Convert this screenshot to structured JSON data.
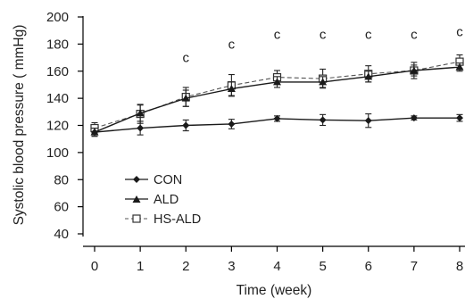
{
  "chart_data": {
    "type": "line",
    "xlabel": "Time (week)",
    "ylabel": "Systolic blood pressure ( mmHg)",
    "x": [
      0,
      1,
      2,
      3,
      4,
      5,
      6,
      7,
      8
    ],
    "xlim": [
      0,
      8
    ],
    "ylim": [
      40,
      200
    ],
    "x_ticks": [
      "0",
      "1",
      "2",
      "3",
      "4",
      "5",
      "6",
      "7",
      "8"
    ],
    "y_ticks": [
      "40",
      "60",
      "80",
      "100",
      "120",
      "140",
      "160",
      "180",
      "200"
    ],
    "grid": false,
    "legend_position": "lower-left",
    "series": [
      {
        "name": "CON",
        "marker": "diamond",
        "line_style": "solid",
        "color": "#1a1a1a",
        "values": [
          115,
          118,
          120,
          121,
          125,
          124,
          123.5,
          125.5,
          125.5
        ],
        "errors": [
          3,
          5,
          4,
          3.5,
          2,
          4,
          5,
          1.5,
          2.5
        ]
      },
      {
        "name": "ALD",
        "marker": "triangle",
        "line_style": "solid",
        "color": "#1a1a1a",
        "values": [
          115,
          129,
          140,
          147,
          152,
          152,
          156,
          160.5,
          163
        ],
        "errors": [
          3,
          6,
          6,
          5,
          4,
          4,
          4,
          4,
          3
        ]
      },
      {
        "name": "HS-ALD",
        "marker": "open-square",
        "line_style": "dashed",
        "color": "#555555",
        "values": [
          118,
          128.5,
          141,
          149.5,
          155.5,
          154.5,
          158,
          160.5,
          167
        ],
        "errors": [
          4,
          7,
          7,
          8,
          5,
          7,
          6,
          6,
          5
        ]
      }
    ],
    "annotations": [
      {
        "x": 2,
        "text": "c",
        "y": 170
      },
      {
        "x": 3,
        "text": "c",
        "y": 180
      },
      {
        "x": 4,
        "text": "c",
        "y": 187
      },
      {
        "x": 5,
        "text": "c",
        "y": 187
      },
      {
        "x": 6,
        "text": "c",
        "y": 187
      },
      {
        "x": 7,
        "text": "c",
        "y": 187
      },
      {
        "x": 8,
        "text": "c",
        "y": 189
      }
    ]
  }
}
